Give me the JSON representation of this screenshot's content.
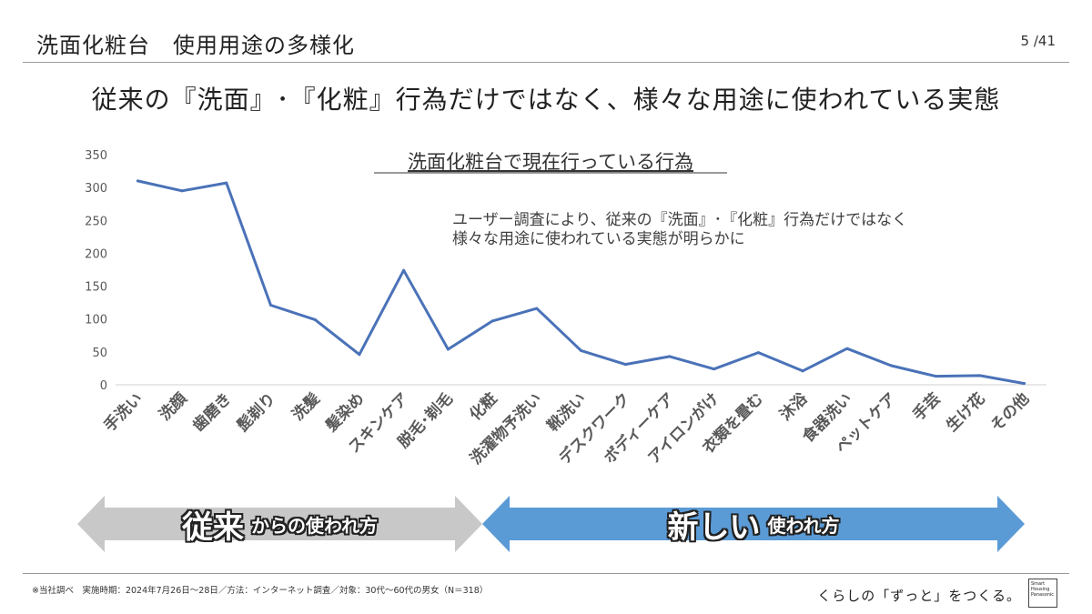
{
  "header": {
    "title": "洗面化粧台　使用用途の多様化",
    "page_num": "5 /41"
  },
  "headline": "従来の『洗面』･『化粧』行為だけではなく、様々な用途に使われている実態",
  "annotation": {
    "line1": "ユーザー調査により、従来の『洗面』･『化粧』行為だけではなく",
    "line2": "様々な用途に使われている実態が明らかに"
  },
  "chart_data": {
    "type": "line",
    "title": "洗面化粧台で現在行っている行為",
    "categories": [
      "手洗い",
      "洗顔",
      "歯磨き",
      "髭剃り",
      "洗髪",
      "髪染め",
      "スキンケア",
      "脱毛･剃毛",
      "化粧",
      "洗濯物予洗い",
      "靴洗い",
      "デスクワーク",
      "ボディーケア",
      "アイロンがけ",
      "衣類を畳む",
      "沐浴",
      "食器洗い",
      "ペットケア",
      "手芸",
      "生け花",
      "その他"
    ],
    "series": [
      {
        "values": [
          310,
          295,
          307,
          121,
          99,
          46,
          174,
          54,
          97,
          116,
          52,
          31,
          43,
          24,
          49,
          21,
          55,
          29,
          13,
          14,
          2
        ]
      }
    ],
    "ylim": [
      0,
      350
    ],
    "yticks": [
      0,
      50,
      100,
      150,
      200,
      250,
      300,
      350
    ],
    "xlabel": "",
    "ylabel": "",
    "grid": false,
    "colors": {
      "line": "#4a72b8",
      "axis": "#d0d0d0",
      "tick_text": "#595959"
    }
  },
  "arrows": {
    "traditional": {
      "big": "従来",
      "small": "からの使われ方",
      "color": "#c8c8c8"
    },
    "new": {
      "big": "新しい",
      "small": "使われ方",
      "color": "#5b9bd5"
    }
  },
  "footer": {
    "note": "※当社調べ　実施時期：2024年7月26日～28日／方法：インターネット調査／対象：30代～60代の男女（N＝318）",
    "tagline": "くらしの「ずっと」をつくる。",
    "logo_text": "Smart Housing Panasonic"
  }
}
